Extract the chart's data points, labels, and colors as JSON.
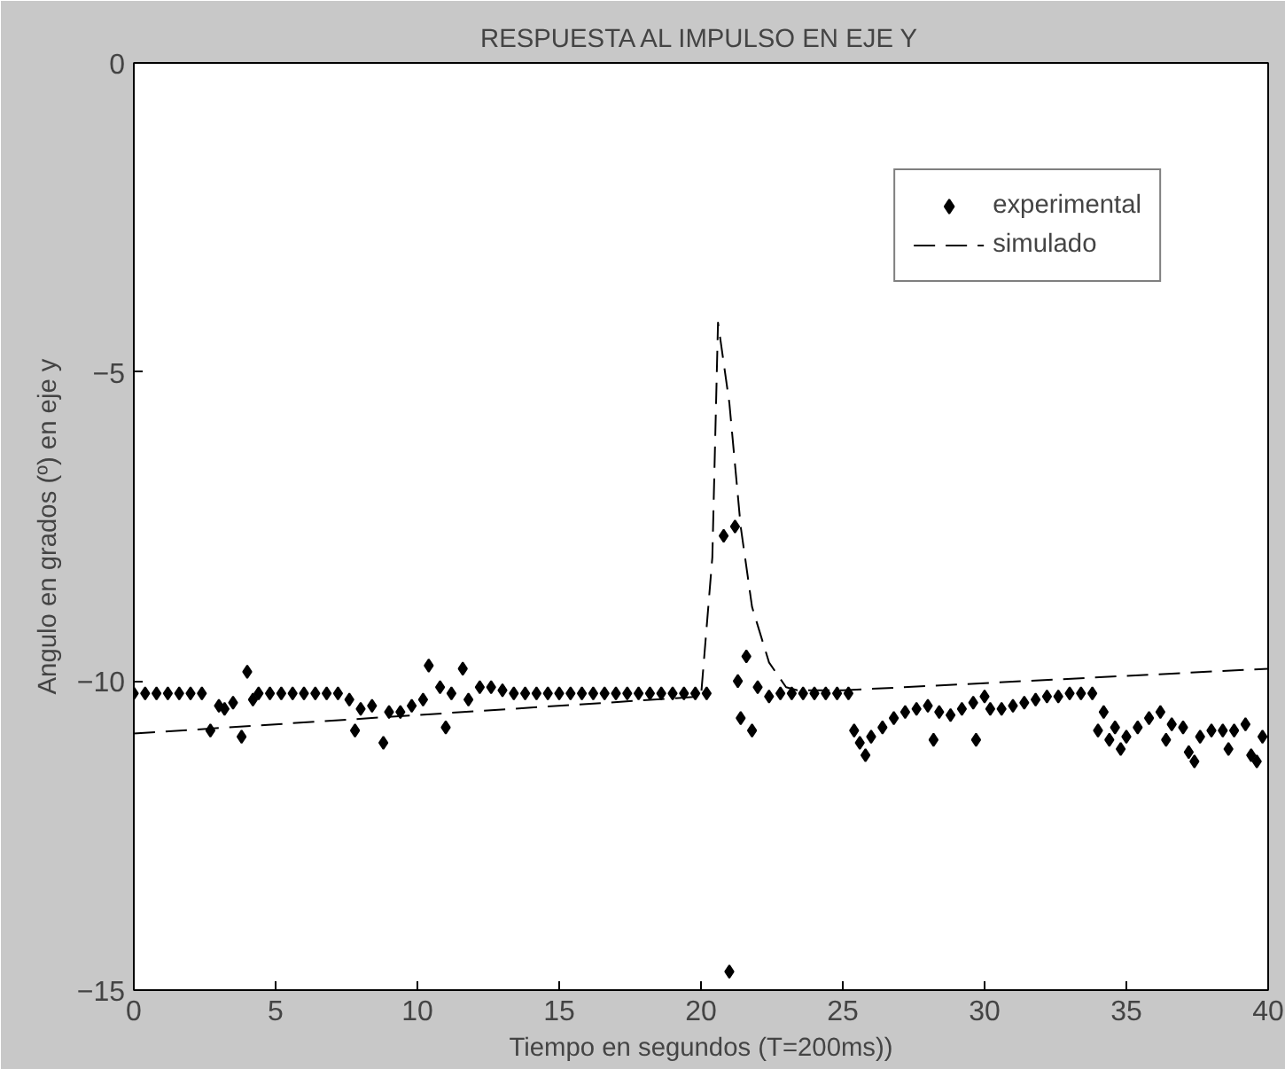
{
  "chart_data": {
    "type": "scatter",
    "title": "RESPUESTA AL IMPULSO EN EJE Y",
    "xlabel": "Tiempo en segundos (T=200ms))",
    "ylabel": "Angulo en grados (º) en eje y",
    "xlim": [
      0,
      40
    ],
    "ylim": [
      -15,
      0
    ],
    "xticks": [
      0,
      5,
      10,
      15,
      20,
      25,
      30,
      35,
      40
    ],
    "yticks": [
      -15,
      -10,
      -5,
      0
    ],
    "grid": false,
    "legend": "top right",
    "series": [
      {
        "name": "experimental",
        "marker": "diamond",
        "color": "#000000",
        "x": [
          0,
          0.4,
          0.8,
          1.2,
          1.6,
          2.0,
          2.4,
          2.7,
          3.0,
          3.2,
          3.5,
          3.8,
          4.0,
          4.2,
          4.4,
          4.8,
          5.2,
          5.6,
          6.0,
          6.4,
          6.8,
          7.2,
          7.6,
          7.8,
          8.0,
          8.4,
          8.8,
          9.0,
          9.4,
          9.8,
          10.2,
          10.4,
          10.8,
          11.0,
          11.2,
          11.6,
          11.8,
          12.2,
          12.6,
          13.0,
          13.4,
          13.8,
          14.2,
          14.6,
          15.0,
          15.4,
          15.8,
          16.2,
          16.6,
          17.0,
          17.4,
          17.8,
          18.2,
          18.6,
          19.0,
          19.4,
          19.8,
          20.2,
          20.8,
          21.0,
          21.2,
          21.3,
          21.4,
          21.6,
          21.8,
          22.0,
          22.4,
          22.8,
          23.2,
          23.6,
          24.0,
          24.4,
          24.8,
          25.2,
          25.4,
          25.6,
          25.8,
          26.0,
          26.4,
          26.8,
          27.2,
          27.6,
          28.0,
          28.2,
          28.4,
          28.8,
          29.2,
          29.6,
          29.7,
          30.0,
          30.2,
          30.6,
          31.0,
          31.4,
          31.8,
          32.2,
          32.6,
          33.0,
          33.4,
          33.8,
          34.0,
          34.2,
          34.4,
          34.6,
          34.8,
          35.0,
          35.4,
          35.8,
          36.2,
          36.4,
          36.6,
          37.0,
          37.2,
          37.4,
          37.6,
          38.0,
          38.4,
          38.6,
          38.8,
          39.2,
          39.4,
          39.6,
          39.8
        ],
        "values": [
          -10.2,
          -10.2,
          -10.2,
          -10.2,
          -10.2,
          -10.2,
          -10.2,
          -10.8,
          -10.4,
          -10.45,
          -10.35,
          -10.9,
          -9.85,
          -10.3,
          -10.2,
          -10.2,
          -10.2,
          -10.2,
          -10.2,
          -10.2,
          -10.2,
          -10.2,
          -10.3,
          -10.8,
          -10.45,
          -10.4,
          -11.0,
          -10.5,
          -10.5,
          -10.4,
          -10.3,
          -9.75,
          -10.1,
          -10.75,
          -10.2,
          -9.8,
          -10.3,
          -10.1,
          -10.1,
          -10.15,
          -10.2,
          -10.2,
          -10.2,
          -10.2,
          -10.2,
          -10.2,
          -10.2,
          -10.2,
          -10.2,
          -10.2,
          -10.2,
          -10.2,
          -10.2,
          -10.2,
          -10.2,
          -10.2,
          -10.2,
          -10.2,
          -7.65,
          -14.7,
          -7.5,
          -10.0,
          -10.6,
          -9.6,
          -10.8,
          -10.1,
          -10.25,
          -10.2,
          -10.2,
          -10.2,
          -10.2,
          -10.2,
          -10.2,
          -10.2,
          -10.8,
          -11.0,
          -11.2,
          -10.9,
          -10.75,
          -10.6,
          -10.5,
          -10.45,
          -10.4,
          -10.95,
          -10.5,
          -10.55,
          -10.45,
          -10.35,
          -10.95,
          -10.25,
          -10.45,
          -10.45,
          -10.4,
          -10.35,
          -10.3,
          -10.25,
          -10.25,
          -10.2,
          -10.2,
          -10.2,
          -10.8,
          -10.5,
          -10.95,
          -10.75,
          -11.1,
          -10.9,
          -10.75,
          -10.6,
          -10.5,
          -10.95,
          -10.7,
          -10.75,
          -11.15,
          -11.3,
          -10.9,
          -10.8,
          -10.8,
          -11.1,
          -10.8,
          -10.7,
          -11.2,
          -11.3,
          -10.9
        ]
      },
      {
        "name": "simulado",
        "type": "line",
        "line_style": "dashed",
        "color": "#000000",
        "x": [
          0,
          20.0,
          20.4,
          20.6,
          21.0,
          21.4,
          21.8,
          22.4,
          23.0,
          23.4,
          25.0,
          40.0
        ],
        "values": [
          -10.85,
          -10.25,
          -8.0,
          -4.2,
          -5.5,
          -7.5,
          -8.8,
          -9.7,
          -10.1,
          -10.15,
          -10.15,
          -9.8
        ]
      }
    ]
  }
}
